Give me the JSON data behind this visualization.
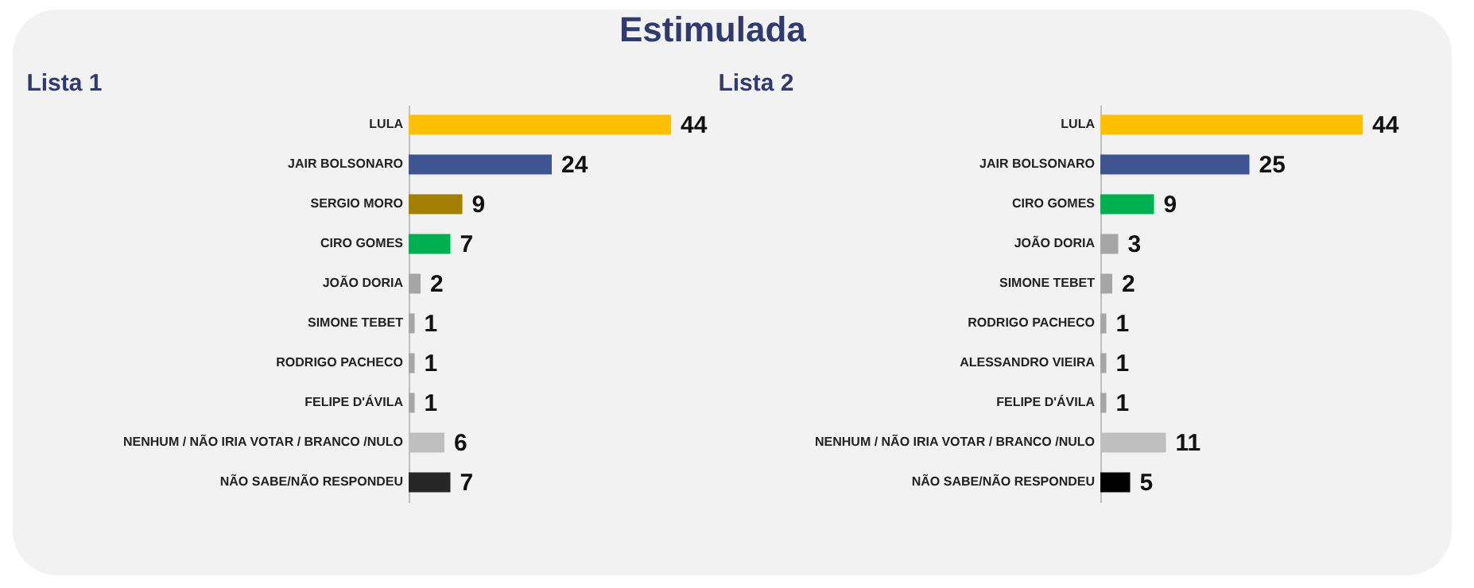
{
  "chart_data": [
    {
      "type": "bar",
      "orientation": "horizontal",
      "title": "Lista 1",
      "annotations": [
        "Estimulada"
      ],
      "data_labels": true,
      "categories": [
        "LULA",
        "JAIR BOLSONARO",
        "SERGIO MORO",
        "CIRO GOMES",
        "JOÃO DORIA",
        "SIMONE TEBET",
        "RODRIGO PACHECO",
        "FELIPE D'ÁVILA",
        "NENHUM / NÃO IRIA VOTAR / BRANCO /NULO",
        "NÃO SABE/NÃO RESPONDEU"
      ],
      "values": [
        44,
        24,
        9,
        7,
        2,
        1,
        1,
        1,
        6,
        7
      ],
      "colors": [
        "#fcc000",
        "#3f5591",
        "#a37f00",
        "#00b050",
        "#a6a6a6",
        "#a6a6a6",
        "#a6a6a6",
        "#a6a6a6",
        "#bfbfbf",
        "#262626"
      ]
    },
    {
      "type": "bar",
      "orientation": "horizontal",
      "title": "Lista 2",
      "data_labels": true,
      "categories": [
        "LULA",
        "JAIR BOLSONARO",
        "CIRO GOMES",
        "JOÃO DORIA",
        "SIMONE TEBET",
        "RODRIGO PACHECO",
        "ALESSANDRO VIEIRA",
        "FELIPE D'ÁVILA",
        "NENHUM / NÃO IRIA VOTAR / BRANCO /NULO",
        "NÃO SABE/NÃO RESPONDEU"
      ],
      "values": [
        44,
        25,
        9,
        3,
        2,
        1,
        1,
        1,
        11,
        5
      ],
      "colors": [
        "#fcc000",
        "#3f5591",
        "#00b050",
        "#a6a6a6",
        "#a6a6a6",
        "#a6a6a6",
        "#a6a6a6",
        "#a6a6a6",
        "#bfbfbf",
        "#000000"
      ]
    }
  ]
}
